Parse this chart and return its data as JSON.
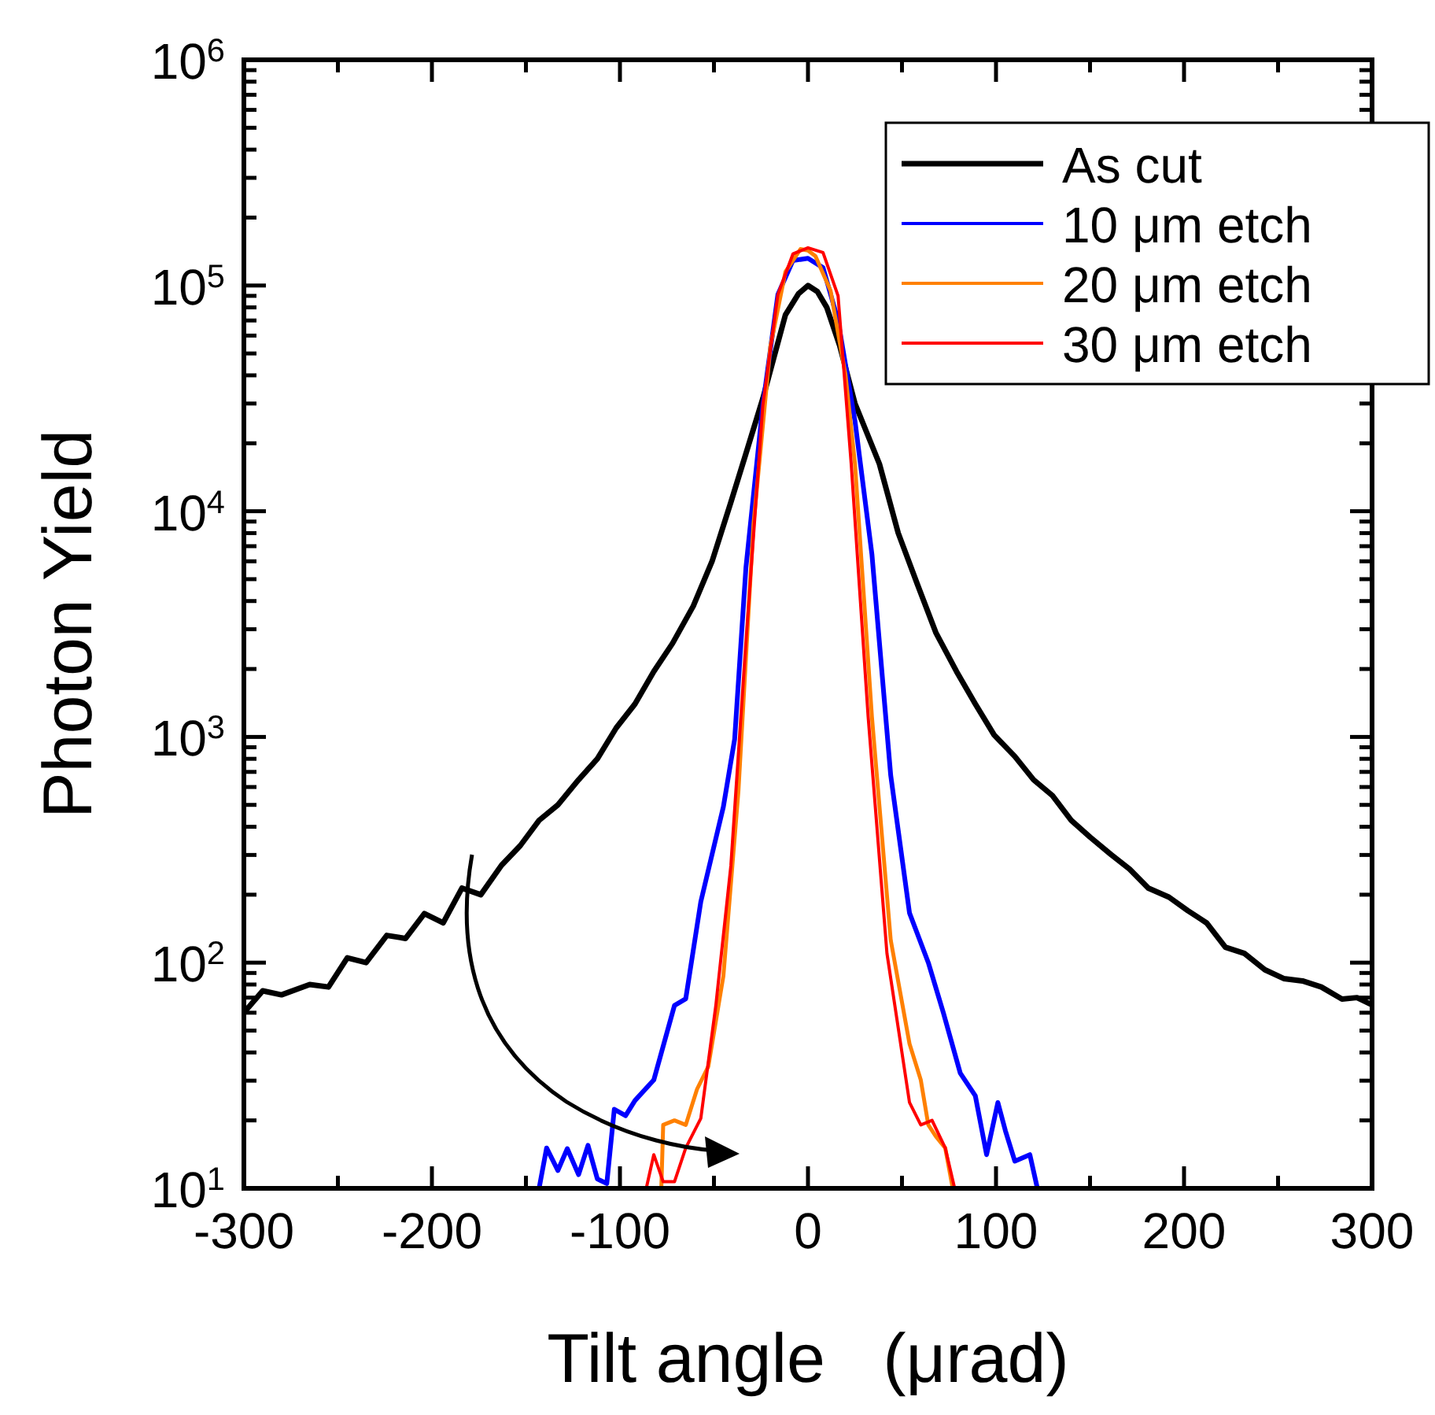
{
  "chart_data": {
    "type": "line",
    "xlabel": "Tilt angle   (μrad)",
    "ylabel": "Photon Yield",
    "log": "y",
    "legend": "top right",
    "grid": false,
    "marker": "none",
    "line_style": "solid",
    "xlim": [
      -300,
      300
    ],
    "xticks": [
      -300,
      {
        "value": -250,
        "label": null
      },
      -200,
      {
        "value": -150,
        "label": null
      },
      -100,
      {
        "value": -50,
        "label": null
      },
      0,
      {
        "value": 50,
        "label": null
      },
      100,
      {
        "value": 150,
        "label": null
      },
      200,
      {
        "value": 250,
        "label": null
      },
      300
    ],
    "ylim": [
      10,
      1000000
    ],
    "yticks": [
      {
        "value": 10,
        "label": "10$^{1}$"
      },
      {
        "value": 20,
        "label": null
      },
      {
        "value": 30,
        "label": null
      },
      {
        "value": 40,
        "label": null
      },
      {
        "value": 50,
        "label": null
      },
      {
        "value": 60,
        "label": null
      },
      {
        "value": 70,
        "label": null
      },
      {
        "value": 80,
        "label": null
      },
      {
        "value": 90,
        "label": null
      },
      {
        "value": 100,
        "label": "10$^{2}$"
      },
      {
        "value": 200,
        "label": null
      },
      {
        "value": 300,
        "label": null
      },
      {
        "value": 400,
        "label": null
      },
      {
        "value": 500,
        "label": null
      },
      {
        "value": 600,
        "label": null
      },
      {
        "value": 700,
        "label": null
      },
      {
        "value": 800,
        "label": null
      },
      {
        "value": 900,
        "label": null
      },
      {
        "value": 1000,
        "label": "10$^{3}$"
      },
      {
        "value": 2000,
        "label": null
      },
      {
        "value": 3000,
        "label": null
      },
      {
        "value": 4000,
        "label": null
      },
      {
        "value": 5000,
        "label": null
      },
      {
        "value": 6000,
        "label": null
      },
      {
        "value": 7000,
        "label": null
      },
      {
        "value": 8000,
        "label": null
      },
      {
        "value": 9000,
        "label": null
      },
      {
        "value": 10000,
        "label": "10$^{4}$"
      },
      {
        "value": 20000,
        "label": null
      },
      {
        "value": 30000,
        "label": null
      },
      {
        "value": 40000,
        "label": null
      },
      {
        "value": 50000,
        "label": null
      },
      {
        "value": 60000,
        "label": null
      },
      {
        "value": 70000,
        "label": null
      },
      {
        "value": 80000,
        "label": null
      },
      {
        "value": 90000,
        "label": null
      },
      {
        "value": 100000,
        "label": "10$^{5}$"
      },
      {
        "value": 200000,
        "label": null
      },
      {
        "value": 300000,
        "label": null
      },
      {
        "value": 400000,
        "label": null
      },
      {
        "value": 500000,
        "label": null
      },
      {
        "value": 600000,
        "label": null
      },
      {
        "value": 700000,
        "label": null
      },
      {
        "value": 800000,
        "label": null
      },
      {
        "value": 900000,
        "label": null
      },
      {
        "value": 1000000,
        "label": "10$^{6}$"
      }
    ],
    "series": [
      {
        "name": "As cut",
        "color": "#000000",
        "x": [
          -300,
          -290,
          -280,
          -265,
          -255,
          -245,
          -235,
          -224,
          -214,
          -204,
          -194,
          -184,
          -174,
          -163,
          -153,
          -143,
          -133,
          -122,
          -112,
          -102,
          -92,
          -82,
          -72,
          -61,
          -51,
          -41,
          -33,
          -24,
          -12,
          -5,
          0,
          5,
          10,
          17,
          25,
          38,
          48,
          58,
          68,
          79,
          89,
          99,
          110,
          120,
          130,
          140,
          150,
          161,
          171,
          181,
          192,
          202,
          212,
          222,
          232,
          243,
          253,
          263,
          273,
          284,
          292,
          300
        ],
        "values": [
          60,
          75,
          72,
          80,
          78,
          105,
          100,
          132,
          128,
          165,
          150,
          214,
          200,
          270,
          330,
          427,
          500,
          646,
          800,
          1096,
          1400,
          1950,
          2600,
          3800,
          6000,
          10960,
          18000,
          31600,
          74100,
          92000,
          100000,
          94000,
          80000,
          53700,
          30000,
          16200,
          8000,
          4790,
          2900,
          1950,
          1400,
          1020,
          820,
          646,
          550,
          427,
          360,
          302,
          260,
          214,
          195,
          170,
          150,
          117,
          110,
          93,
          85,
          83,
          78,
          69,
          70,
          65
        ]
      },
      {
        "name": "10 μm etch",
        "color": "#0000ff",
        "x": [
          -143,
          -139,
          -133,
          -128,
          -122,
          -117,
          -112,
          -107,
          -103,
          -97,
          -92,
          -82,
          -71,
          -65,
          -57,
          -45,
          -39,
          -33,
          -24,
          -16,
          -8,
          0,
          8,
          16,
          25,
          34,
          44,
          54,
          64,
          72,
          81,
          89,
          95,
          101,
          105,
          110,
          118,
          122
        ],
        "values": [
          10,
          15.1,
          12,
          15,
          11.5,
          15.5,
          11,
          10.5,
          22.4,
          21,
          24.5,
          30.2,
          64.6,
          69.2,
          186,
          490,
          977,
          5620,
          29500,
          91200,
          129000,
          132000,
          120000,
          70000,
          25100,
          6460,
          676,
          166,
          100,
          60,
          32.4,
          25.7,
          14.1,
          24,
          18,
          13.2,
          14.1,
          10
        ]
      },
      {
        "name": "20 μm etch",
        "color": "#ff8000",
        "x": [
          -78,
          -77,
          -71,
          -65,
          -59,
          -53,
          -45,
          -37,
          -29,
          -20,
          -12,
          -4,
          0,
          4,
          12,
          20,
          25,
          34,
          44,
          54,
          60,
          64,
          68,
          73,
          77
        ],
        "values": [
          10,
          19.1,
          20,
          19.1,
          27.5,
          34.7,
          87.1,
          575,
          8710,
          53700,
          115000,
          145000,
          143000,
          135000,
          95000,
          40000,
          16200,
          1230,
          126,
          43.7,
          30.2,
          19.1,
          17,
          15.1,
          10
        ]
      },
      {
        "name": "30 μm etch",
        "color": "#ff0000",
        "x": [
          -86,
          -82,
          -77,
          -71,
          -65,
          -57,
          -49,
          -41,
          -33,
          -24,
          -16,
          -8,
          0,
          8,
          16,
          23,
          32,
          42,
          54,
          60,
          66,
          73,
          78
        ],
        "values": [
          10,
          14.1,
          10.7,
          10.7,
          15.1,
          20.4,
          64.6,
          269,
          2630,
          29500,
          91200,
          138000,
          147000,
          140000,
          90000,
          16200,
          1230,
          110,
          24,
          19.1,
          20,
          15.1,
          10
        ]
      }
    ]
  }
}
